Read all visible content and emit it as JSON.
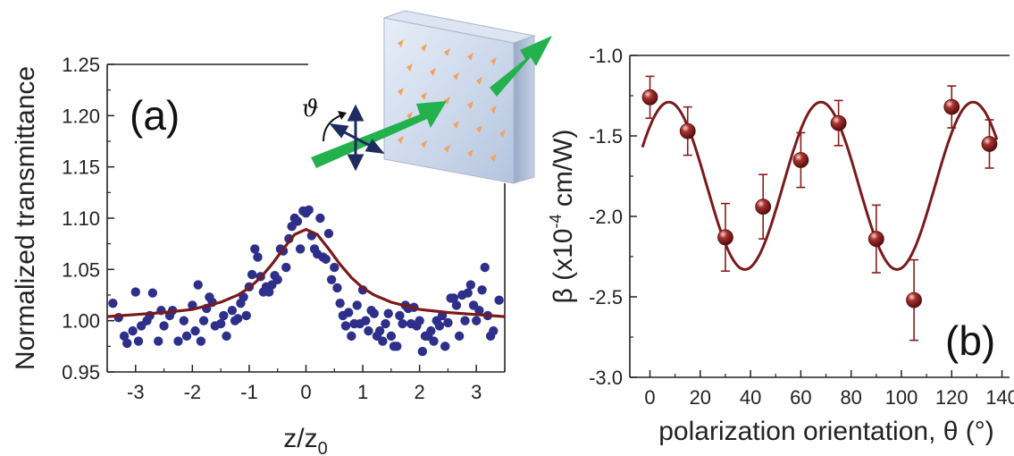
{
  "chart_data": [
    {
      "type": "scatter",
      "panel_label": "(a)",
      "xlabel": "z/z",
      "xlabel_sub": "0",
      "ylabel": "Normalized transmittance",
      "xlim": [
        -3.5,
        3.5
      ],
      "ylim": [
        0.95,
        1.25
      ],
      "xticks": [
        -3,
        -2,
        -1,
        0,
        1,
        2,
        3
      ],
      "xtick_labels": [
        "-3",
        "-2",
        "-1",
        "0",
        "1",
        "2",
        "3"
      ],
      "yticks": [
        0.95,
        1.0,
        1.05,
        1.1,
        1.15,
        1.2,
        1.25
      ],
      "ytick_labels": [
        "0.95",
        "1.00",
        "1.05",
        "1.10",
        "1.15",
        "1.20",
        "1.25"
      ],
      "grid": false,
      "marker_color": "#2e2f8a",
      "line_color": "#7a1a1a",
      "series": [
        {
          "kind": "points",
          "x": [
            -3.4,
            -3.3,
            -3.2,
            -3.15,
            -3.05,
            -3.0,
            -2.95,
            -2.9,
            -2.8,
            -2.75,
            -2.7,
            -2.6,
            -2.55,
            -2.5,
            -2.4,
            -2.35,
            -2.25,
            -2.15,
            -2.1,
            -2.0,
            -1.95,
            -1.9,
            -1.85,
            -1.8,
            -1.75,
            -1.7,
            -1.65,
            -1.6,
            -1.5,
            -1.45,
            -1.4,
            -1.3,
            -1.25,
            -1.2,
            -1.15,
            -1.1,
            -1.05,
            -1.0,
            -0.95,
            -0.9,
            -0.85,
            -0.8,
            -0.75,
            -0.7,
            -0.65,
            -0.6,
            -0.55,
            -0.5,
            -0.45,
            -0.4,
            -0.35,
            -0.3,
            -0.25,
            -0.2,
            -0.15,
            -0.1,
            -0.05,
            0.0,
            0.05,
            0.1,
            0.15,
            0.2,
            0.25,
            0.3,
            0.35,
            0.4,
            0.45,
            0.5,
            0.55,
            0.6,
            0.65,
            0.7,
            0.75,
            0.8,
            0.85,
            0.9,
            0.95,
            1.0,
            1.05,
            1.1,
            1.15,
            1.2,
            1.25,
            1.3,
            1.35,
            1.4,
            1.45,
            1.5,
            1.55,
            1.6,
            1.65,
            1.7,
            1.75,
            1.8,
            1.85,
            1.9,
            1.95,
            2.0,
            2.05,
            2.1,
            2.15,
            2.2,
            2.25,
            2.3,
            2.35,
            2.4,
            2.45,
            2.5,
            2.55,
            2.6,
            2.65,
            2.7,
            2.75,
            2.8,
            2.85,
            2.9,
            2.95,
            3.0,
            3.05,
            3.1,
            3.15,
            3.2,
            3.25,
            3.3,
            3.4
          ],
          "y": [
            1.017,
            1.003,
            0.985,
            0.978,
            0.99,
            1.028,
            0.98,
            0.995,
            1.0,
            1.005,
            1.027,
            0.98,
            1.01,
            0.995,
            1.005,
            1.01,
            0.98,
            1.0,
            0.985,
            1.015,
            0.99,
            1.035,
            0.98,
            1.0,
            1.012,
            1.023,
            1.018,
            0.995,
            0.997,
            1.005,
            0.985,
            1.01,
            1.0,
            1.002,
            1.017,
            1.023,
            1.005,
            1.033,
            1.045,
            1.07,
            1.062,
            1.043,
            1.028,
            1.033,
            1.028,
            1.035,
            1.044,
            1.04,
            1.07,
            1.068,
            1.052,
            1.08,
            1.092,
            1.1,
            1.097,
            1.07,
            1.107,
            1.105,
            1.108,
            1.083,
            1.07,
            1.065,
            1.1,
            1.062,
            1.06,
            1.085,
            1.04,
            1.052,
            1.032,
            1.017,
            1.005,
            0.995,
            1.008,
            0.985,
            0.997,
            1.015,
            0.997,
            1.03,
            1.0,
            0.99,
            1.01,
            1.007,
            0.985,
            0.99,
            0.98,
            0.997,
            1.007,
            0.985,
            0.975,
            0.975,
            1.005,
            0.997,
            1.015,
            1.012,
            0.997,
            1.013,
            0.995,
            1.0,
            0.97,
            0.985,
            0.985,
            0.99,
            0.98,
            1.0,
            0.995,
            1.005,
            0.975,
            0.998,
            1.022,
            1.022,
            1.015,
            0.985,
            1.025,
            1.0,
            1.027,
            1.035,
            1.015,
            1.0,
            1.01,
            1.03,
            1.052,
            1.005,
            0.985,
            0.99,
            1.02
          ]
        },
        {
          "kind": "fit",
          "x": [
            -3.5,
            -3.0,
            -2.5,
            -2.0,
            -1.5,
            -1.2,
            -1.0,
            -0.8,
            -0.6,
            -0.4,
            -0.2,
            0.0,
            0.2,
            0.4,
            0.6,
            0.8,
            1.0,
            1.2,
            1.5,
            2.0,
            2.5,
            3.0,
            3.5
          ],
          "y": [
            1.004,
            1.006,
            1.008,
            1.011,
            1.018,
            1.025,
            1.032,
            1.042,
            1.055,
            1.07,
            1.084,
            1.089,
            1.084,
            1.07,
            1.055,
            1.042,
            1.032,
            1.025,
            1.018,
            1.011,
            1.008,
            1.006,
            1.004
          ]
        }
      ]
    },
    {
      "type": "scatter",
      "panel_label": "(b)",
      "xlabel": "polarization orientation, θ (°)",
      "ylabel_prefix": "β (x10",
      "ylabel_sup": "-4",
      "ylabel_suffix": " cm/W)",
      "xlim": [
        -8,
        143
      ],
      "ylim": [
        -3.0,
        -1.0
      ],
      "xticks": [
        0,
        20,
        40,
        60,
        80,
        100,
        120,
        140
      ],
      "xtick_labels": [
        "0",
        "20",
        "40",
        "60",
        "80",
        "100",
        "120",
        "140"
      ],
      "yticks": [
        -3.0,
        -2.5,
        -2.0,
        -1.5,
        -1.0
      ],
      "ytick_labels": [
        "-3.0",
        "-2.5",
        "-2.0",
        "-1.5",
        "-1.0"
      ],
      "grid": false,
      "marker_color": "#8a1c1c",
      "line_color": "#7a1a1a",
      "series": [
        {
          "kind": "points_with_error",
          "x": [
            0,
            15,
            30,
            45,
            60,
            75,
            90,
            105,
            120,
            135
          ],
          "y": [
            -1.26,
            -1.47,
            -2.13,
            -1.94,
            -1.65,
            -1.42,
            -2.14,
            -2.52,
            -1.32,
            -1.55
          ],
          "err": [
            0.13,
            0.15,
            0.21,
            0.2,
            0.17,
            0.14,
            0.21,
            0.25,
            0.13,
            0.15
          ]
        },
        {
          "kind": "fit",
          "func": "sine",
          "offset": -1.81,
          "amplitude": 0.52,
          "period": 60.5,
          "peak_at": 7.5,
          "x_from": -3,
          "x_to": 138
        }
      ]
    }
  ]
}
